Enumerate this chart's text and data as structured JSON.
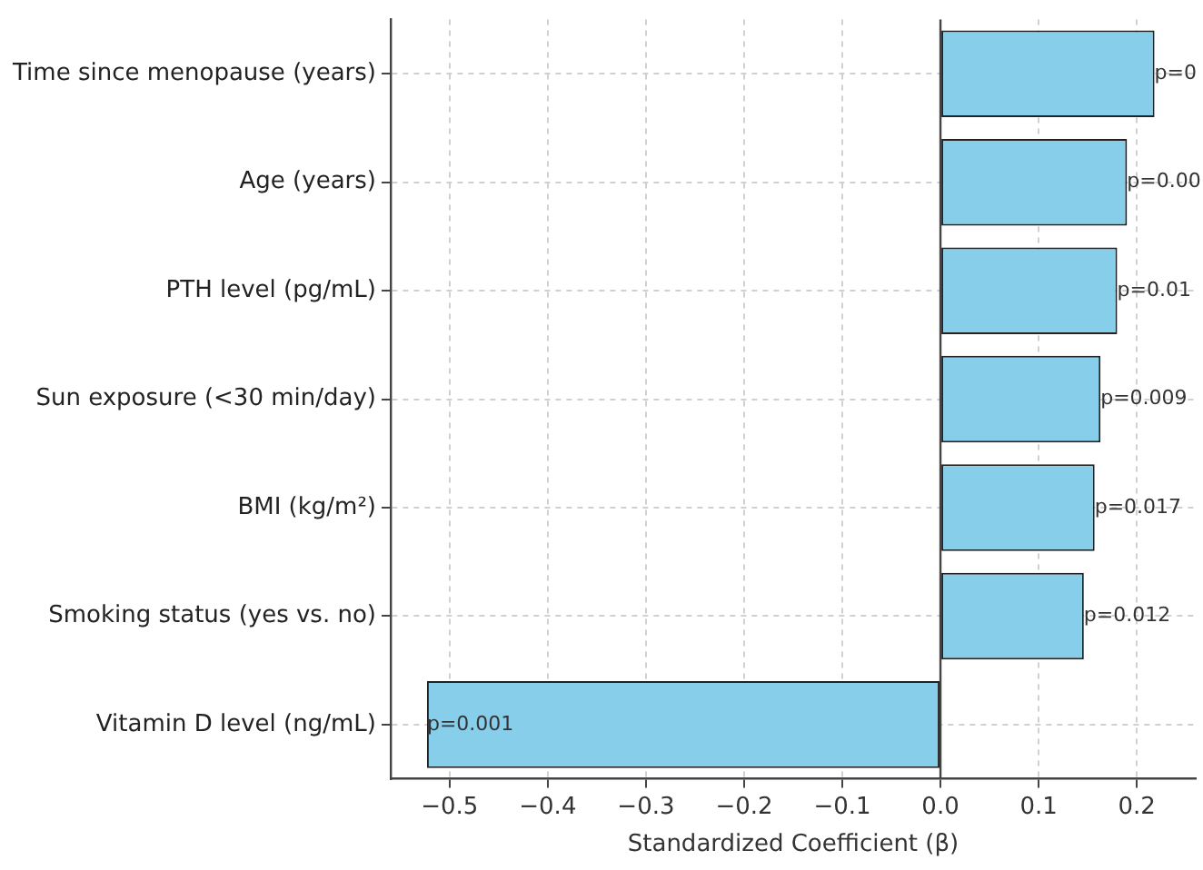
{
  "chart_data": {
    "type": "bar",
    "orientation": "horizontal",
    "xlabel": "Standardized Coefficient (β)",
    "categories": [
      "Time since menopause (years)",
      "Age (years)",
      "PTH level (pg/mL)",
      "Sun exposure (<30 min/day)",
      "BMI (kg/m²)",
      "Smoking status (yes vs. no)",
      "Vitamin D level (ng/mL)"
    ],
    "values": [
      0.218,
      0.19,
      0.18,
      0.163,
      0.157,
      0.146,
      -0.523
    ],
    "annotations": [
      {
        "text": "p=0",
        "x": 0.218,
        "y": "Time since menopause (years)"
      },
      {
        "text": "p=0.00",
        "x": 0.19,
        "y": "Age (years)"
      },
      {
        "text": "p=0.01",
        "x": 0.18,
        "y": "PTH level (pg/mL)"
      },
      {
        "text": "p=0.009",
        "x": 0.163,
        "y": "Sun exposure (<30 min/day)"
      },
      {
        "text": "p=0.017",
        "x": 0.157,
        "y": "BMI (kg/m²)"
      },
      {
        "text": "p=0.012",
        "x": 0.146,
        "y": "Smoking status (yes vs. no)"
      },
      {
        "text": "p=0.001",
        "x": -0.523,
        "y": "Vitamin D level (ng/mL)"
      }
    ],
    "color": "#87ceeb",
    "xlim": [
      -0.56,
      0.26
    ],
    "xticks": [
      -0.5,
      -0.4,
      -0.3,
      -0.2,
      -0.1,
      {
        "value": 0,
        "label": "0.0"
      },
      0.1,
      0.2
    ],
    "grid": true,
    "legend": false
  }
}
